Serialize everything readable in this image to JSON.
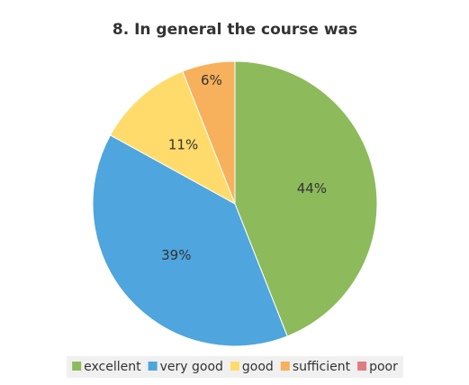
{
  "chart_data": {
    "type": "pie",
    "title": "8. In general the course was",
    "categories": [
      "excellent",
      "very good",
      "good",
      "sufficient",
      "poor"
    ],
    "values": [
      44,
      39,
      11,
      6,
      0
    ],
    "value_labels": [
      "44%",
      "39%",
      "11%",
      "6%",
      null
    ],
    "colors": [
      "#8dbb5c",
      "#4fa5dd",
      "#fedb6b",
      "#f7b05b",
      "#e07b82"
    ],
    "legend": "bottom"
  }
}
